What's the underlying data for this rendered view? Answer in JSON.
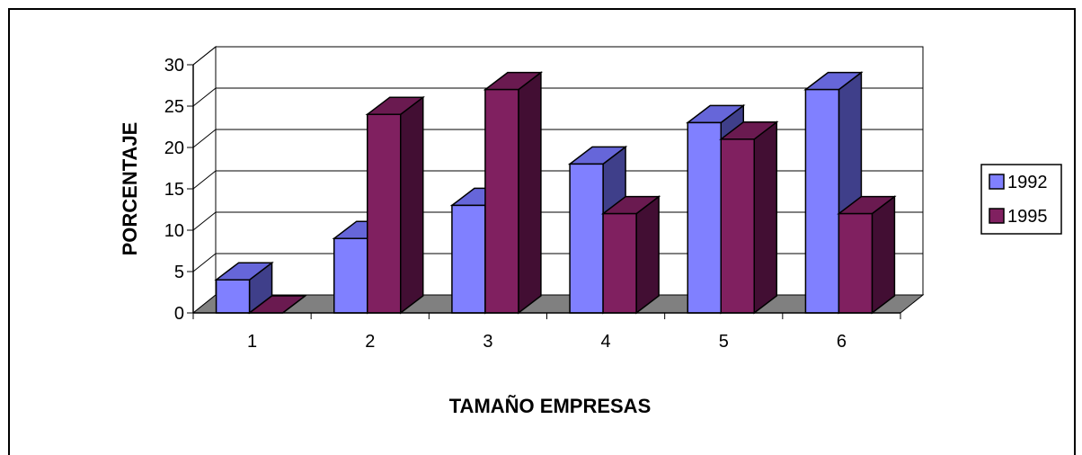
{
  "chart_data": {
    "type": "bar",
    "style": "3d-clustered-column",
    "categories": [
      "1",
      "2",
      "3",
      "4",
      "5",
      "6"
    ],
    "series": [
      {
        "name": "1992",
        "values": [
          4,
          9,
          13,
          18,
          23,
          27
        ]
      },
      {
        "name": "1995",
        "values": [
          0,
          24,
          27,
          12,
          21,
          12
        ]
      }
    ],
    "xlabel": "TAMAÑO EMPRESAS",
    "ylabel": "PORCENTAJE",
    "ylim": [
      0,
      30
    ],
    "yticks": [
      "0",
      "5",
      "10",
      "15",
      "20",
      "25",
      "30"
    ],
    "grid": true,
    "legend_position": "right"
  },
  "colors": {
    "series_1992_front": "#8080ff",
    "series_1992_top": "#6666d9",
    "series_1992_side": "#3f3f8a",
    "series_1995_front": "#802060",
    "series_1995_top": "#6a1a50",
    "series_1995_side": "#420e33",
    "floor": "#808080",
    "back_wall": "#ffffff"
  }
}
